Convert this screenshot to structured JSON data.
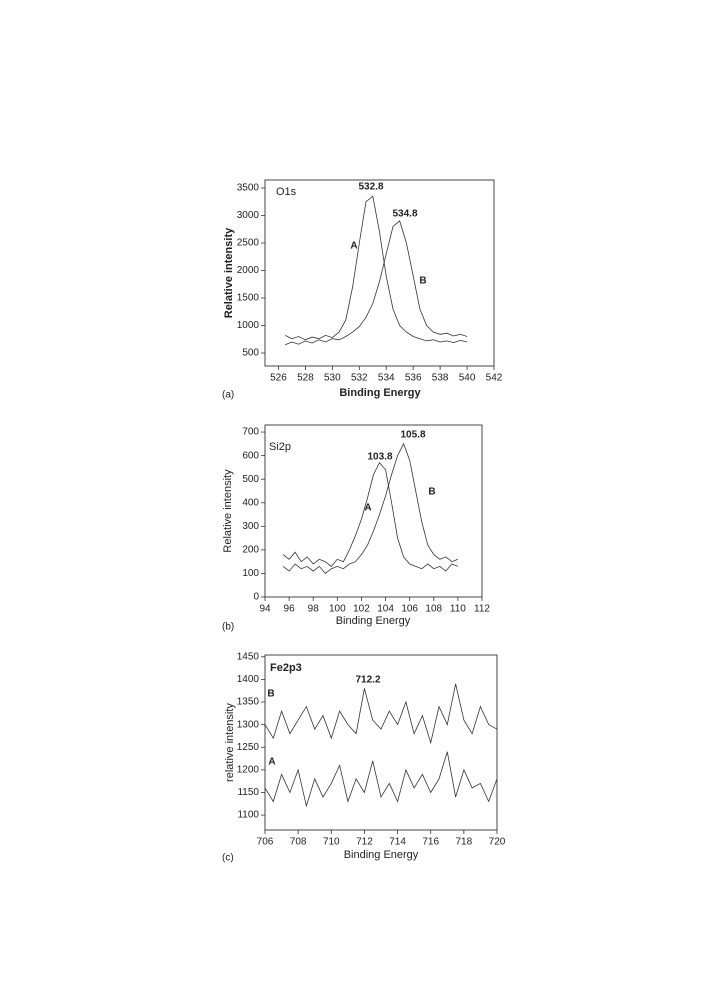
{
  "chart_data": [
    {
      "type": "line",
      "title": "O1s",
      "panel_label": "(a)",
      "xlabel": "Binding Energy",
      "ylabel": "Relative intensity",
      "peak_labels": [
        "532.8",
        "534.8"
      ],
      "x": [
        526.5,
        527,
        527.5,
        528,
        528.5,
        529,
        529.5,
        530,
        530.5,
        531,
        531.5,
        532,
        532.5,
        533,
        533.5,
        534,
        534.5,
        535,
        535.5,
        536,
        536.5,
        537,
        537.5,
        538,
        538.5,
        539,
        539.5,
        540
      ],
      "series": [
        {
          "name": "A",
          "color": "#333333",
          "values": [
            820,
            760,
            800,
            740,
            790,
            760,
            820,
            780,
            880,
            1100,
            1700,
            2500,
            3250,
            3350,
            2700,
            1900,
            1300,
            1000,
            880,
            800,
            760,
            720,
            740,
            700,
            720,
            690,
            730,
            700
          ]
        },
        {
          "name": "B",
          "color": "#333333",
          "values": [
            650,
            700,
            660,
            720,
            680,
            740,
            700,
            760,
            740,
            800,
            880,
            980,
            1150,
            1400,
            1800,
            2300,
            2800,
            2900,
            2500,
            1900,
            1300,
            1000,
            880,
            840,
            860,
            810,
            840,
            800
          ]
        }
      ],
      "xlim": [
        525,
        542
      ],
      "ylim": [
        264,
        3645
      ],
      "xticks": [
        526,
        528,
        530,
        532,
        534,
        536,
        538,
        540,
        542
      ],
      "yticks": [
        500,
        1000,
        1500,
        2000,
        2500,
        3000,
        3500
      ]
    },
    {
      "type": "line",
      "title": "Si2p",
      "panel_label": "(b)",
      "xlabel": "Binding Energy",
      "ylabel": "Relative intensity",
      "peak_labels": [
        "103.8",
        "105.8"
      ],
      "x": [
        95.5,
        96,
        96.5,
        97,
        97.5,
        98,
        98.5,
        99,
        99.5,
        100,
        100.5,
        101,
        101.5,
        102,
        102.5,
        103,
        103.5,
        104,
        104.5,
        105,
        105.5,
        106,
        106.5,
        107,
        107.5,
        108,
        108.5,
        109,
        109.5,
        110
      ],
      "series": [
        {
          "name": "A",
          "color": "#333333",
          "values": [
            180,
            160,
            190,
            150,
            170,
            140,
            160,
            150,
            130,
            160,
            150,
            200,
            260,
            330,
            420,
            520,
            570,
            540,
            400,
            250,
            170,
            140,
            130,
            120,
            140,
            120,
            130,
            110,
            140,
            130
          ]
        },
        {
          "name": "B",
          "color": "#333333",
          "values": [
            130,
            110,
            140,
            120,
            130,
            110,
            130,
            100,
            120,
            130,
            120,
            140,
            150,
            180,
            220,
            280,
            350,
            430,
            520,
            600,
            650,
            580,
            450,
            320,
            220,
            180,
            160,
            170,
            150,
            160
          ]
        }
      ],
      "xlim": [
        94,
        112
      ],
      "ylim": [
        0,
        730
      ],
      "xticks": [
        94,
        96,
        98,
        100,
        102,
        104,
        106,
        108,
        110,
        112
      ],
      "yticks": [
        0,
        100,
        200,
        300,
        400,
        500,
        600,
        700
      ]
    },
    {
      "type": "line",
      "title": "Fe2p3",
      "panel_label": "(c)",
      "xlabel": "Binding Energy",
      "ylabel": "relative intensity",
      "peak_labels": [
        "712.2"
      ],
      "x": [
        706,
        706.5,
        707,
        707.5,
        708,
        708.5,
        709,
        709.5,
        710,
        710.5,
        711,
        711.5,
        712,
        712.5,
        713,
        713.5,
        714,
        714.5,
        715,
        715.5,
        716,
        716.5,
        717,
        717.5,
        718,
        718.5,
        719,
        719.5,
        720
      ],
      "series": [
        {
          "name": "B",
          "color": "#333333",
          "values": [
            1300,
            1270,
            1330,
            1280,
            1310,
            1340,
            1290,
            1320,
            1270,
            1330,
            1300,
            1280,
            1380,
            1310,
            1290,
            1330,
            1300,
            1350,
            1280,
            1320,
            1260,
            1340,
            1300,
            1390,
            1310,
            1280,
            1340,
            1300,
            1290
          ]
        },
        {
          "name": "A",
          "color": "#333333",
          "values": [
            1160,
            1130,
            1190,
            1150,
            1200,
            1120,
            1180,
            1140,
            1170,
            1210,
            1130,
            1180,
            1150,
            1220,
            1140,
            1170,
            1130,
            1200,
            1160,
            1190,
            1150,
            1180,
            1240,
            1140,
            1200,
            1160,
            1170,
            1130,
            1180
          ]
        }
      ],
      "xlim": [
        706,
        720
      ],
      "ylim": [
        1067,
        1454
      ],
      "xticks": [
        706,
        708,
        710,
        712,
        714,
        716,
        718,
        720
      ],
      "yticks": [
        1100,
        1150,
        1200,
        1250,
        1300,
        1350,
        1400,
        1450
      ]
    }
  ]
}
